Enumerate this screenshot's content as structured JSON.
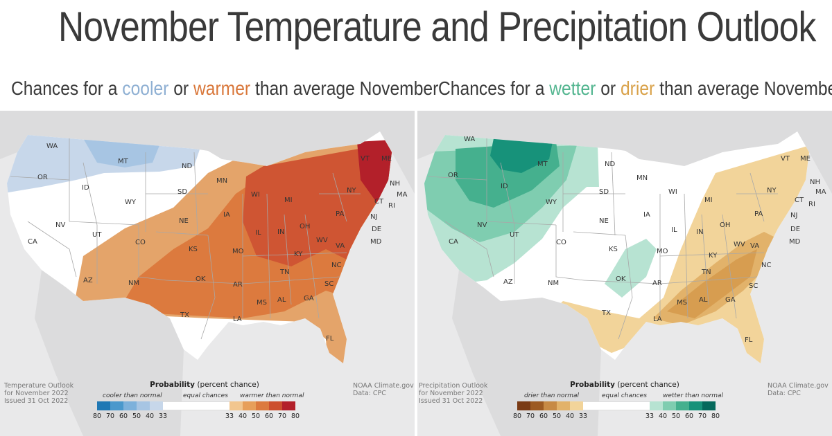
{
  "title": "November Temperature and Precipitation Outlook",
  "left_panel": {
    "subtitle_prefix": "Chances for a ",
    "keyword_1": "cooler",
    "keyword_1_color": "#8fb0d3",
    "subtitle_middle": " or ",
    "keyword_2": "warmer",
    "keyword_2_color": "#d9773a",
    "subtitle_suffix": " than average November",
    "note": "Temperature Outlook\nfor November 2022\nIssued 31 Oct 2022",
    "credit_1": "NOAA Climate.gov",
    "credit_2": "Data: CPC",
    "legend": {
      "title_bold": "Probability",
      "title_rest": " (percent chance)",
      "cap_left": "cooler than normal",
      "cap_mid": "equal chances",
      "cap_right": "warmer than normal",
      "left_ticks": [
        "80",
        "70",
        "60",
        "50",
        "40",
        "33"
      ],
      "right_ticks": [
        "33",
        "40",
        "50",
        "60",
        "70",
        "80"
      ],
      "left_colors": [
        "#1f78b4",
        "#4a98cc",
        "#7db1db",
        "#a7c5e3",
        "#c7d7ea"
      ],
      "right_colors": [
        "#f2c68f",
        "#e79f5a",
        "#dc7a3e",
        "#cc4f2e",
        "#b3202a"
      ]
    }
  },
  "right_panel": {
    "subtitle_prefix": "Chances for a ",
    "keyword_1": "wetter",
    "keyword_1_color": "#52b58f",
    "subtitle_middle": " or ",
    "keyword_2": "drier",
    "keyword_2_color": "#d9a24a",
    "subtitle_suffix": " than average November",
    "note": "Precipitation Outlook\nfor November 2022\nIssued 31 Oct 2022",
    "credit_1": "NOAA Climate.gov",
    "credit_2": "Data: CPC",
    "legend": {
      "title_bold": "Probability",
      "title_rest": " (percent chance)",
      "cap_left": "drier than normal",
      "cap_mid": "equal chances",
      "cap_right": "wetter than normal",
      "left_ticks": [
        "80",
        "70",
        "60",
        "50",
        "40",
        "33"
      ],
      "right_ticks": [
        "33",
        "40",
        "50",
        "60",
        "70",
        "80"
      ],
      "left_colors": [
        "#7a3b15",
        "#9c5a22",
        "#c78a45",
        "#e2b26a",
        "#f2d49a"
      ],
      "right_colors": [
        "#b7e3d2",
        "#7fcdb0",
        "#45b08e",
        "#17927a",
        "#05695c"
      ]
    }
  },
  "states": [
    "WA",
    "OR",
    "ID",
    "MT",
    "WY",
    "CA",
    "NV",
    "UT",
    "AZ",
    "CO",
    "NM",
    "ND",
    "SD",
    "NE",
    "KS",
    "OK",
    "TX",
    "MN",
    "IA",
    "MO",
    "AR",
    "LA",
    "WI",
    "IL",
    "MS",
    "MI",
    "IN",
    "KY",
    "TN",
    "AL",
    "OH",
    "WV",
    "VA",
    "NC",
    "SC",
    "GA",
    "FL",
    "PA",
    "NY",
    "VT",
    "ME",
    "NH",
    "MA",
    "RI",
    "CT",
    "NJ",
    "DE",
    "MD"
  ]
}
